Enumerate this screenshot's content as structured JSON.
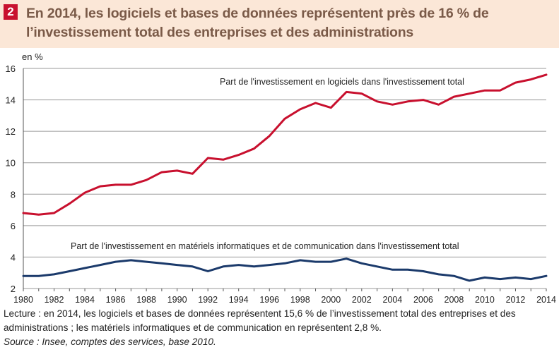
{
  "figure": {
    "number": "2",
    "title": "En 2014, les logiciels et bases de données représentent près de 16 % de l’investissement total des entreprises et des administrations",
    "unit_label": "en %",
    "note": "Lecture : en 2014, les logiciels et bases de données représentent 15,6 % de l’investissement total des entreprises et des administrations ; les matériels informatiques et de communication en représentent 2,8 %.",
    "source": "Source : Insee, comptes des services, base 2010."
  },
  "colors": {
    "series_software": "#c8102e",
    "series_hardware": "#1b3a6b",
    "header_bg": "#fbe7d7",
    "title_text": "#7a5a48",
    "badge_bg": "#c8102e"
  },
  "chart_data": {
    "type": "line",
    "title": "",
    "xlabel": "",
    "ylabel": "en %",
    "ylim": [
      2,
      16
    ],
    "yticks": [
      2,
      4,
      6,
      8,
      10,
      12,
      14,
      16
    ],
    "xlim": [
      1980,
      2014
    ],
    "xticks": [
      1980,
      1982,
      1984,
      1986,
      1988,
      1990,
      1992,
      1994,
      1996,
      1998,
      2000,
      2002,
      2004,
      2006,
      2008,
      2010,
      2012,
      2014
    ],
    "grid": "horizontal",
    "x": [
      1980,
      1981,
      1982,
      1983,
      1984,
      1985,
      1986,
      1987,
      1988,
      1989,
      1990,
      1991,
      1992,
      1993,
      1994,
      1995,
      1996,
      1997,
      1998,
      1999,
      2000,
      2001,
      2002,
      2003,
      2004,
      2005,
      2006,
      2007,
      2008,
      2009,
      2010,
      2011,
      2012,
      2013,
      2014
    ],
    "series": [
      {
        "name": "Part de l'investissement en logiciels dans l'investissement total",
        "color": "#c8102e",
        "values": [
          6.8,
          6.7,
          6.8,
          7.4,
          8.1,
          8.5,
          8.6,
          8.6,
          8.9,
          9.4,
          9.5,
          9.3,
          10.3,
          10.2,
          10.5,
          10.9,
          11.7,
          12.8,
          13.4,
          13.8,
          13.5,
          14.5,
          14.4,
          13.9,
          13.7,
          13.9,
          14.0,
          13.7,
          14.2,
          14.4,
          14.6,
          14.6,
          15.1,
          15.3,
          15.6
        ]
      },
      {
        "name": "Part de l'investissement en matériels informatiques et de communication dans l'investissement total",
        "color": "#1b3a6b",
        "values": [
          2.8,
          2.8,
          2.9,
          3.1,
          3.3,
          3.5,
          3.7,
          3.8,
          3.7,
          3.6,
          3.5,
          3.4,
          3.1,
          3.4,
          3.5,
          3.4,
          3.5,
          3.6,
          3.8,
          3.7,
          3.7,
          3.9,
          3.6,
          3.4,
          3.2,
          3.2,
          3.1,
          2.9,
          2.8,
          2.5,
          2.7,
          2.6,
          2.7,
          2.6,
          2.8
        ]
      }
    ]
  }
}
